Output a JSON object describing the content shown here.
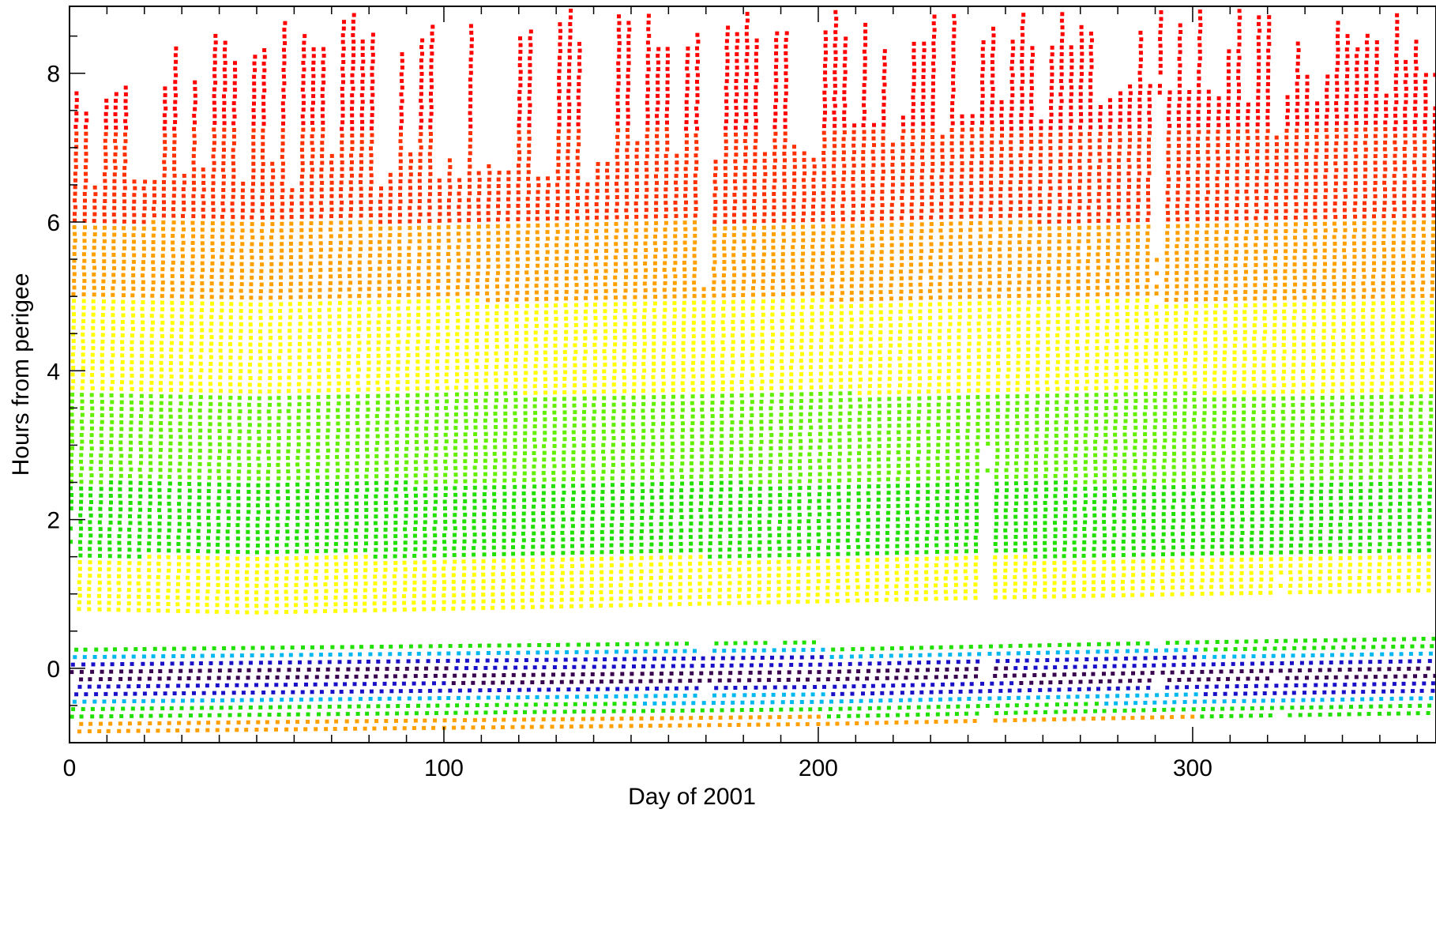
{
  "chart_data": {
    "type": "scatter",
    "title": "",
    "xlabel": "Day of 2001",
    "ylabel": "Hours from perigee",
    "xlim": [
      0,
      365
    ],
    "ylim": [
      -1.0,
      8.9
    ],
    "x_ticks": [
      0,
      100,
      200,
      300
    ],
    "x_tick_labels": [
      "0",
      "100",
      "200",
      "300"
    ],
    "x_minor_step": 10,
    "y_ticks": [
      0,
      2,
      4,
      6,
      8
    ],
    "y_tick_labels": [
      "0",
      "2",
      "4",
      "6",
      "8"
    ],
    "y_minor_step": 0.5,
    "grid": false,
    "legend": "none",
    "data_gaps_days": [
      169.5,
      170.5,
      244.5,
      245.2,
      290.5,
      291.2,
      322.5,
      323.5
    ],
    "orbit_period_days": 2.63,
    "color_scale": [
      "#3a0050",
      "#1a10c8",
      "#00b8f0",
      "#20e000",
      "#b0ff00",
      "#ffff00",
      "#ffa000",
      "#ff3000",
      "#ff0000"
    ],
    "series": [
      {
        "segment": "outbound",
        "x": [
          0,
          50,
          100,
          150,
          200,
          245,
          300,
          365
        ],
        "y_min": [
          0.8,
          0.75,
          0.8,
          0.85,
          0.9,
          0.95,
          1.0,
          1.05
        ],
        "y_max": [
          8.0,
          8.8,
          8.9,
          8.9,
          8.9,
          8.9,
          8.9,
          8.9
        ],
        "y_dense_top": [
          6.2,
          6.4,
          6.5,
          6.6,
          6.9,
          7.2,
          7.5,
          7.8
        ],
        "color_at_y": [
          {
            "y": 1.0,
            "color": "#ffff00"
          },
          {
            "y": 2.0,
            "color": "#20e000"
          },
          {
            "y": 3.0,
            "color": "#60f000"
          },
          {
            "y": 4.4,
            "color": "#ffff00"
          },
          {
            "y": 5.5,
            "color": "#ffa000"
          },
          {
            "y": 6.5,
            "color": "#ff3000"
          },
          {
            "y": 8.0,
            "color": "#ff0000"
          }
        ]
      },
      {
        "segment": "perigee",
        "x": [
          0,
          100,
          200,
          300,
          365
        ],
        "y_min": [
          -0.85,
          -0.8,
          -0.75,
          -0.65,
          -0.6
        ],
        "y_max": [
          0.3,
          0.3,
          0.35,
          0.4,
          0.45
        ],
        "color_at_y": [
          {
            "y": -0.75,
            "color": "#ffa000"
          },
          {
            "y": -0.55,
            "color": "#20e000"
          },
          {
            "y": -0.4,
            "color": "#00b8f0"
          },
          {
            "y": -0.3,
            "color": "#1a10c8"
          },
          {
            "y": -0.1,
            "color": "#3a0050"
          },
          {
            "y": 0.1,
            "color": "#1a10c8"
          },
          {
            "y": 0.2,
            "color": "#00b8f0"
          },
          {
            "y": 0.3,
            "color": "#20e000"
          }
        ]
      }
    ]
  }
}
